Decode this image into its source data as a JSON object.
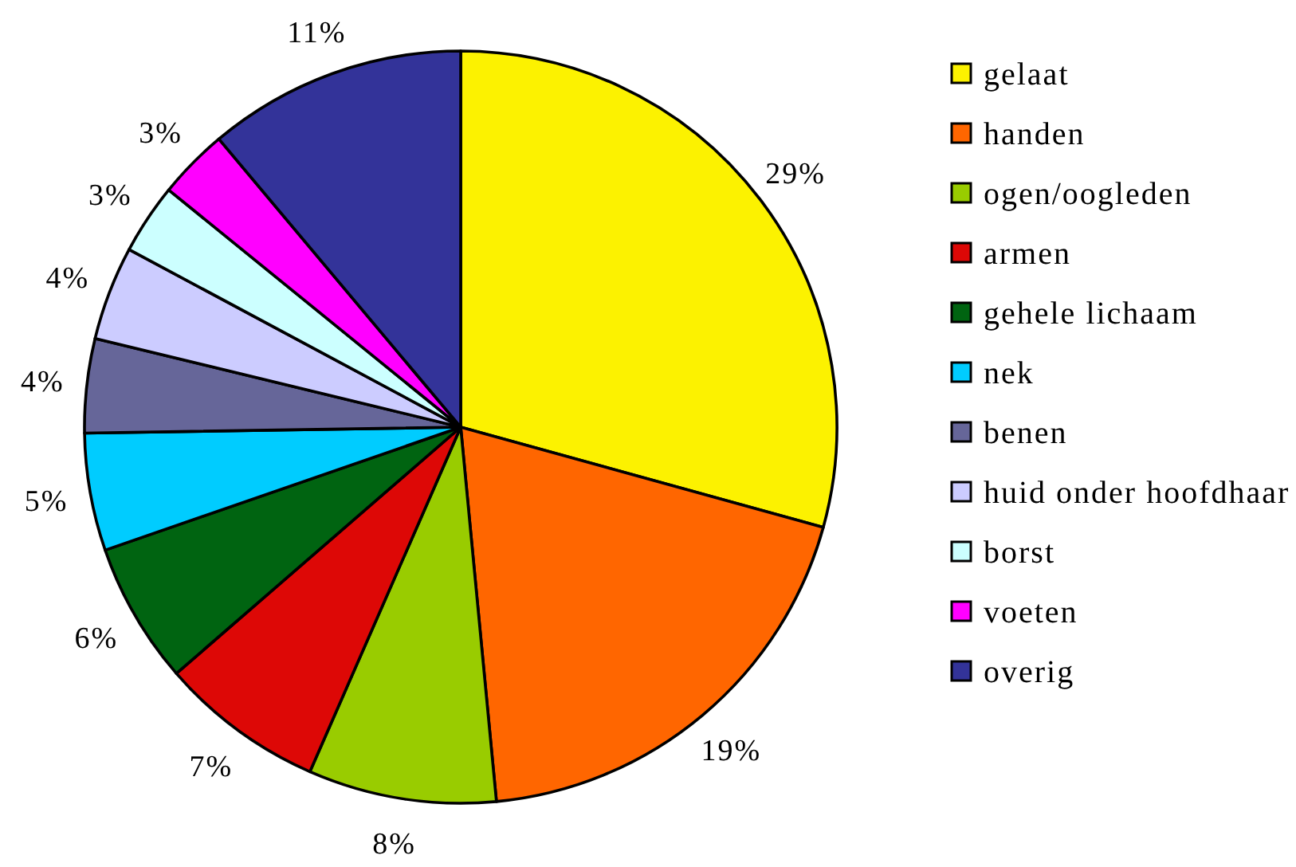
{
  "chart_data": {
    "type": "pie",
    "categories": [
      "gelaat",
      "handen",
      "ogen/oogleden",
      "armen",
      "gehele lichaam",
      "nek",
      "benen",
      "huid onder hoofdhaar",
      "borst",
      "voeten",
      "overig"
    ],
    "values": [
      29,
      19,
      8,
      7,
      6,
      5,
      4,
      4,
      3,
      3,
      11
    ],
    "colors": [
      "#fcf200",
      "#ff6600",
      "#99cc00",
      "#dd0806",
      "#006411",
      "#00ccff",
      "#666699",
      "#ccccff",
      "#ccffff",
      "#ff00ff",
      "#333399"
    ],
    "value_labels": [
      "29%",
      "19%",
      "8%",
      "7%",
      "6%",
      "5%",
      "4%",
      "4%",
      "3%",
      "3%",
      "11%"
    ],
    "legend": "right"
  }
}
